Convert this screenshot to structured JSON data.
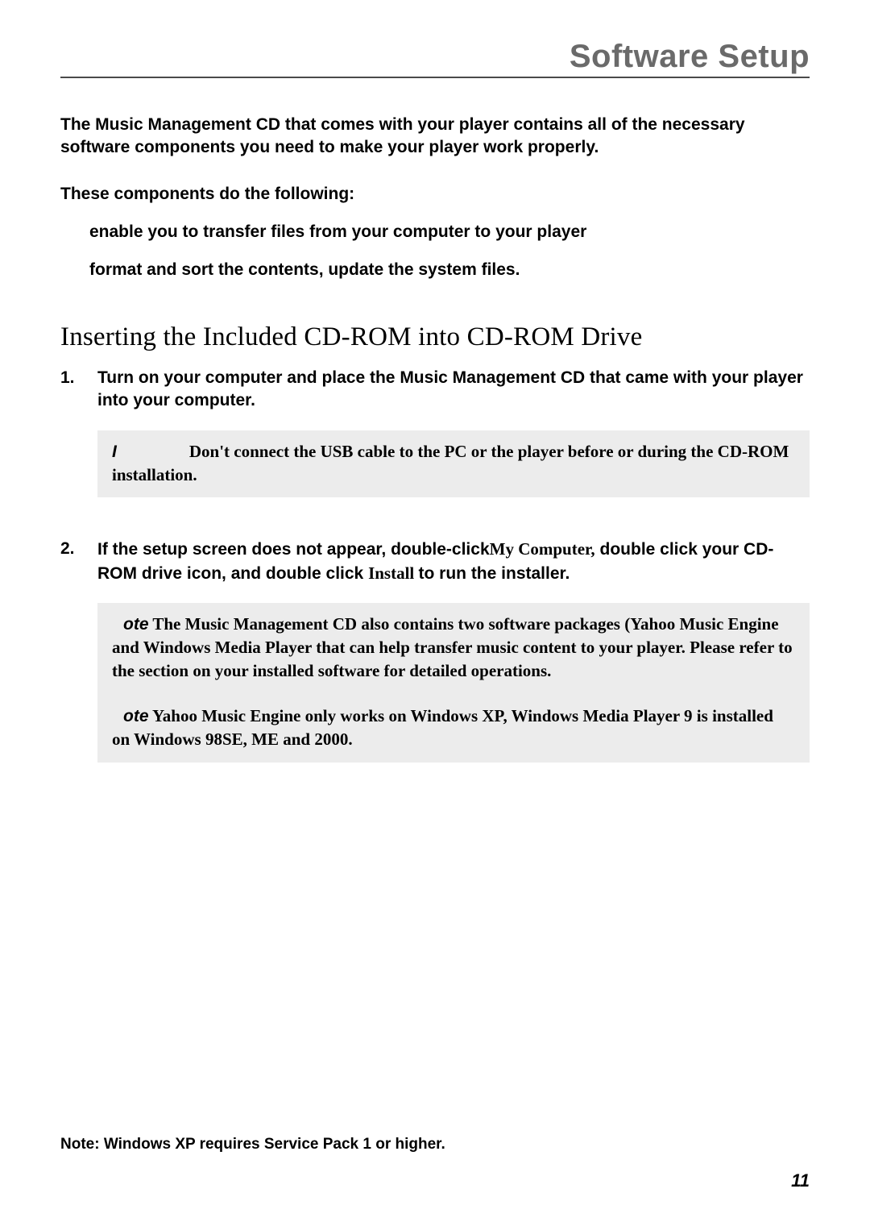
{
  "header": {
    "title": "Software Setup"
  },
  "intro": {
    "p1": "The Music Management CD that comes with your player contains all of the necessary software components you need to make your player work properly.",
    "p2": "These components do the following:"
  },
  "bullets": {
    "b1": "enable you to transfer files from your computer to your player",
    "b2": "format and sort the contents, update the system files."
  },
  "section": {
    "heading": "Inserting the Included CD-ROM into CD-ROM Drive"
  },
  "steps": {
    "s1_num": "1.",
    "s1_text": "Turn on your computer and place the Music Management CD that came with your player into your computer.",
    "note1_label": "I",
    "note1_text": "Don't connect the USB cable to the PC or the player before or during the CD-ROM installation.",
    "s2_num": "2.",
    "s2_a": "If the setup screen does not appear, double-click",
    "s2_mycomp": "My Computer,",
    "s2_b": " double click your CD-ROM drive icon, and double click ",
    "s2_install": "Install ",
    "s2_c": "to run the installer.",
    "note2_label": "ote",
    "note2_text": " The Music Management CD also contains two software packages (Yahoo Music Engine and Windows Media Player that can help transfer music content to your player. Please refer to the section on your installed software for detailed operations.",
    "note3_label": "ote",
    "note3_text": " Yahoo  Music Engine only works on Windows XP, Windows Media Player 9 is installed on Windows 98SE, ME and 2000."
  },
  "footer": {
    "note": "Note: Windows XP requires Service Pack 1 or higher.",
    "page": "11"
  }
}
